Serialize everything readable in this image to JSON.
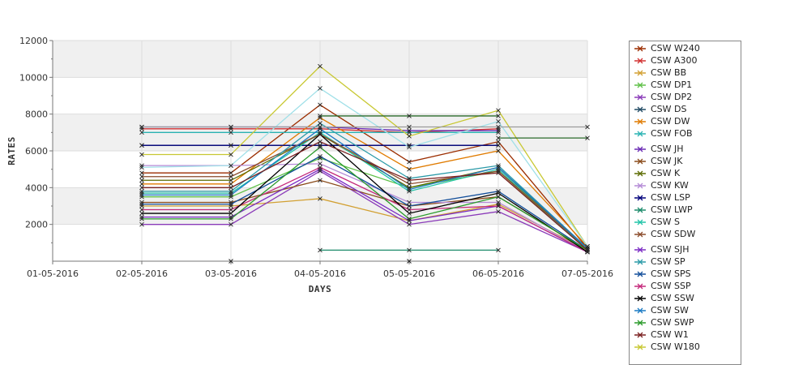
{
  "chart_data": {
    "type": "line",
    "title": "",
    "xlabel": "DAYS",
    "ylabel": "RATES",
    "categories": [
      "01-05-2016",
      "02-05-2016",
      "03-05-2016",
      "04-05-2016",
      "05-05-2016",
      "06-05-2016",
      "07-05-2016"
    ],
    "ylim": [
      0,
      12000
    ],
    "yticks": [
      2000,
      4000,
      6000,
      8000,
      10000,
      12000
    ],
    "grid": true,
    "legend_position": "right",
    "series": [
      {
        "name": "CSW  W240",
        "color": "#9b2d00",
        "values": [
          null,
          4800,
          4800,
          8500,
          5400,
          6500,
          700
        ]
      },
      {
        "name": "CSW A300",
        "color": "#d23232",
        "values": [
          null,
          7200,
          7200,
          7200,
          7000,
          7200,
          null
        ]
      },
      {
        "name": "CSW BB",
        "color": "#d2a032",
        "values": [
          null,
          3000,
          3000,
          3400,
          2200,
          3100,
          600
        ]
      },
      {
        "name": "CSW DP1",
        "color": "#5fc048",
        "values": [
          null,
          3500,
          3500,
          5600,
          4000,
          4900,
          600
        ]
      },
      {
        "name": "CSW DP2",
        "color": "#8a3ab9",
        "values": [
          null,
          2000,
          2000,
          4900,
          2000,
          2700,
          500
        ]
      },
      {
        "name": "CSW DS",
        "color": "#214a64",
        "values": [
          null,
          6300,
          6300,
          6300,
          6300,
          6300,
          null
        ]
      },
      {
        "name": "CSW DW",
        "color": "#e07b00",
        "values": [
          null,
          4200,
          4200,
          7800,
          5000,
          6000,
          800
        ]
      },
      {
        "name": "CSW FOB",
        "color": "#29b2b2",
        "values": [
          null,
          7000,
          7000,
          7000,
          7000,
          7000,
          null
        ]
      },
      {
        "name": "CSW JH",
        "color": "#6a2ab4",
        "values": [
          null,
          7300,
          7300,
          7300,
          7100,
          7100,
          null
        ]
      },
      {
        "name": "CSW JK",
        "color": "#8a4b1a",
        "values": [
          null,
          3200,
          3200,
          4400,
          3000,
          3500,
          600
        ]
      },
      {
        "name": "CSW K",
        "color": "#5b6b00",
        "values": [
          null,
          4400,
          4400,
          6900,
          4000,
          5100,
          600
        ]
      },
      {
        "name": "CSW KW",
        "color": "#b48ad6",
        "values": [
          null,
          5200,
          5200,
          5300,
          3200,
          3200,
          500
        ]
      },
      {
        "name": "CSW LSP",
        "color": "#00007a",
        "values": [
          null,
          6300,
          6300,
          6300,
          6300,
          6300,
          null
        ]
      },
      {
        "name": "CSW LWP",
        "color": "#1a8a6a",
        "values": [
          null,
          null,
          null,
          600,
          600,
          600,
          null
        ]
      },
      {
        "name": "CSW S",
        "color": "#22c4a8",
        "values": [
          null,
          3700,
          3700,
          7000,
          3800,
          5000,
          600
        ]
      },
      {
        "name": "CSW SDW",
        "color": "#8a4a2a",
        "values": [
          null,
          4600,
          4600,
          6900,
          4200,
          4900,
          700
        ]
      },
      {
        "name": "CSW SJH",
        "color": "#7a2ac4",
        "values": [
          null,
          2400,
          2400,
          5000,
          2200,
          3000,
          500
        ]
      },
      {
        "name": "CSW SP",
        "color": "#2a9aa8",
        "values": [
          null,
          3800,
          3800,
          7500,
          4500,
          5200,
          700
        ]
      },
      {
        "name": "CSW SPS",
        "color": "#124e9a",
        "values": [
          null,
          3100,
          3100,
          5700,
          3000,
          3800,
          600
        ]
      },
      {
        "name": "CSW SSP",
        "color": "#c4287a",
        "values": [
          null,
          2800,
          2800,
          5100,
          2800,
          3000,
          500
        ]
      },
      {
        "name": "CSW SSW",
        "color": "#000000",
        "values": [
          null,
          2600,
          2600,
          6900,
          2600,
          3700,
          500
        ]
      },
      {
        "name": "CSW SW",
        "color": "#1a7ac4",
        "values": [
          null,
          3600,
          3600,
          7200,
          3900,
          5100,
          700
        ]
      },
      {
        "name": "CSW SWP",
        "color": "#2a9a2a",
        "values": [
          null,
          2300,
          2300,
          6200,
          2300,
          3500,
          600
        ]
      },
      {
        "name": "CSW W1",
        "color": "#7a2020",
        "values": [
          null,
          4000,
          4000,
          6500,
          4400,
          4800,
          600
        ]
      },
      {
        "name": "CSW W180",
        "color": "#c8c832",
        "values": [
          null,
          5800,
          5800,
          10600,
          6800,
          8200,
          800
        ]
      },
      {
        "name": "",
        "color": "#a0e0e8",
        "values": [
          null,
          5100,
          5200,
          9400,
          6200,
          7600,
          800
        ]
      },
      {
        "name": "",
        "color": "#9a9a9a",
        "values": [
          null,
          7300,
          7300,
          7300,
          7300,
          7300,
          7300
        ]
      },
      {
        "name": "",
        "color": "#2a6a2a",
        "values": [
          null,
          null,
          null,
          7900,
          7900,
          7900,
          null
        ]
      },
      {
        "name": "",
        "color": "#2a6a2a",
        "values": [
          null,
          null,
          null,
          null,
          null,
          6700,
          6700
        ]
      },
      {
        "name": "",
        "color": "#6a8ac8",
        "values": [
          null,
          null,
          0,
          null,
          0,
          null,
          null
        ]
      }
    ]
  },
  "legend_items": [
    {
      "label": "CSW  W240",
      "color": "#9b2d00"
    },
    {
      "label": "CSW A300",
      "color": "#d23232"
    },
    {
      "label": "CSW BB",
      "color": "#d2a032"
    },
    {
      "label": "CSW DP1",
      "color": "#5fc048"
    },
    {
      "label": "CSW DP2",
      "color": "#8a3ab9"
    },
    {
      "label": "CSW DS",
      "color": "#214a64"
    },
    {
      "label": "CSW DW",
      "color": "#e07b00"
    },
    {
      "label": "CSW FOB",
      "color": "#29b2b2"
    },
    {
      "label": "CSW JH",
      "color": "#6a2ab4"
    },
    {
      "label": "CSW JK",
      "color": "#8a4b1a"
    },
    {
      "label": "CSW K",
      "color": "#5b6b00"
    },
    {
      "label": "CSW KW",
      "color": "#b48ad6"
    },
    {
      "label": "CSW LSP",
      "color": "#00007a"
    },
    {
      "label": "CSW LWP",
      "color": "#1a8a6a"
    },
    {
      "label": "CSW S",
      "color": "#22c4a8"
    },
    {
      "label": "CSW SDW",
      "color": "#8a4a2a"
    },
    {
      "label": "CSW SJH",
      "color": "#7a2ac4"
    },
    {
      "label": "CSW SP",
      "color": "#2a9aa8"
    },
    {
      "label": "CSW SPS",
      "color": "#124e9a"
    },
    {
      "label": "CSW SSP",
      "color": "#c4287a"
    },
    {
      "label": "CSW SSW",
      "color": "#000000"
    },
    {
      "label": "CSW SW",
      "color": "#1a7ac4"
    },
    {
      "label": "CSW SWP",
      "color": "#2a9a2a"
    },
    {
      "label": "CSW W1",
      "color": "#7a2020"
    },
    {
      "label": "CSW W180",
      "color": "#c8c832"
    }
  ]
}
